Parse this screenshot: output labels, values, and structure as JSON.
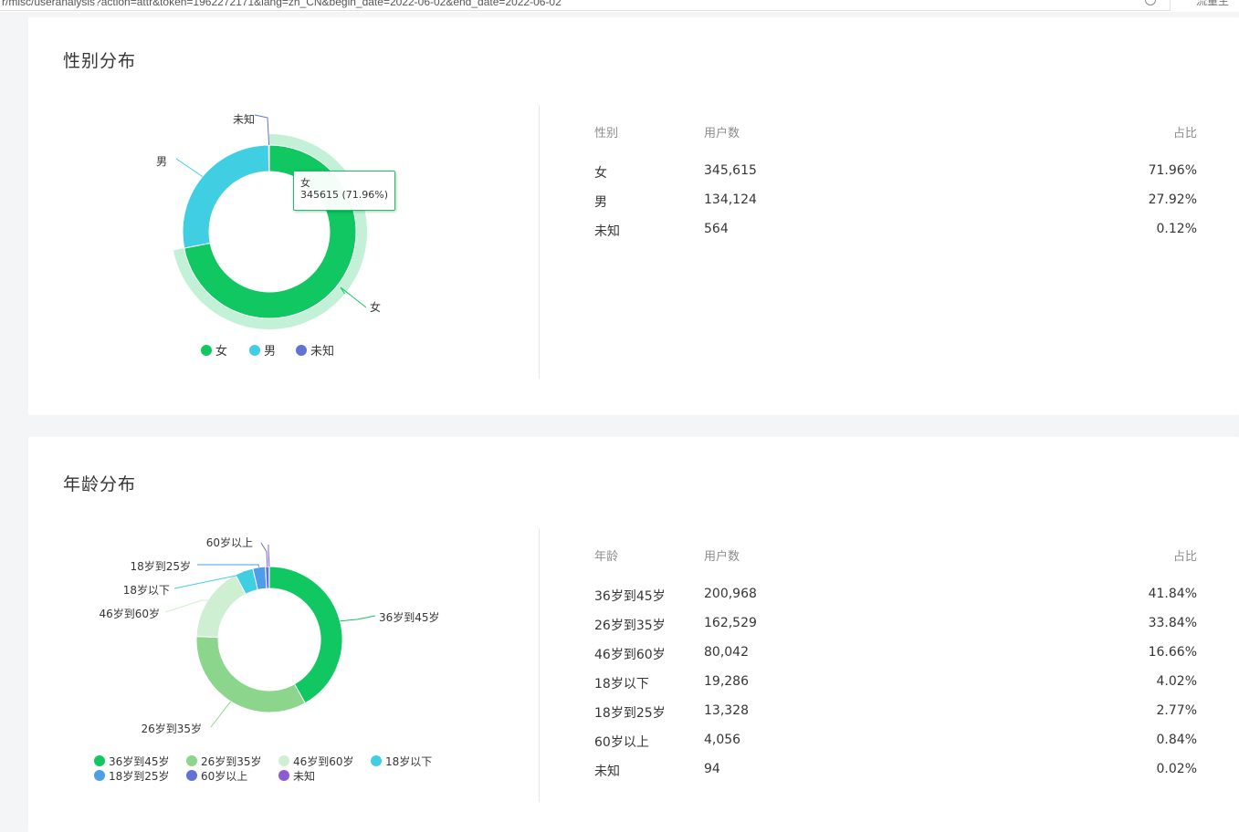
{
  "address_bar": {
    "url": "r/misc/useranalysis?action=attr&token=1962272171&lang=zh_CN&begin_date=2022-06-02&end_date=2022-06-02",
    "side_tab": "流量主"
  },
  "gender": {
    "title": "性别分布",
    "table": {
      "headers": [
        "性别",
        "用户数",
        "占比"
      ],
      "rows": [
        {
          "label": "女",
          "count": "345,615",
          "pct": "71.96%"
        },
        {
          "label": "男",
          "count": "134,124",
          "pct": "27.92%"
        },
        {
          "label": "未知",
          "count": "564",
          "pct": "0.12%"
        }
      ]
    },
    "tooltip": {
      "name": "女",
      "value": "345615 (71.96%)"
    }
  },
  "age": {
    "title": "年龄分布",
    "table": {
      "headers": [
        "年龄",
        "用户数",
        "占比"
      ],
      "rows": [
        {
          "label": "36岁到45岁",
          "count": "200,968",
          "pct": "41.84%"
        },
        {
          "label": "26岁到35岁",
          "count": "162,529",
          "pct": "33.84%"
        },
        {
          "label": "46岁到60岁",
          "count": "80,042",
          "pct": "16.66%"
        },
        {
          "label": "18岁以下",
          "count": "19,286",
          "pct": "4.02%"
        },
        {
          "label": "18岁到25岁",
          "count": "13,328",
          "pct": "2.77%"
        },
        {
          "label": "60岁以上",
          "count": "4,056",
          "pct": "0.84%"
        },
        {
          "label": "未知",
          "count": "94",
          "pct": "0.02%"
        }
      ]
    }
  },
  "chart_data": [
    {
      "type": "pie",
      "title": "性别分布",
      "donut": true,
      "categories": [
        "女",
        "男",
        "未知"
      ],
      "values": [
        345615,
        134124,
        564
      ],
      "colors": [
        "#10c761",
        "#40cfe2",
        "#6271d4"
      ],
      "highlighted": "女",
      "legend": [
        "女",
        "男",
        "未知"
      ],
      "legend_position": "bottom"
    },
    {
      "type": "pie",
      "title": "年龄分布",
      "donut": true,
      "categories": [
        "36岁到45岁",
        "26岁到35岁",
        "46岁到60岁",
        "18岁以下",
        "18岁到25岁",
        "60岁以上",
        "未知"
      ],
      "values": [
        200968,
        162529,
        80042,
        19286,
        13328,
        4056,
        94
      ],
      "colors": [
        "#10c761",
        "#8bd68c",
        "#cfefd3",
        "#40cfe2",
        "#4d9de8",
        "#6271d4",
        "#8e5bd2"
      ],
      "legend": [
        "36岁到45岁",
        "26岁到35岁",
        "46岁到60岁",
        "18岁以下",
        "18岁到25岁",
        "60岁以上",
        "未知"
      ],
      "legend_position": "bottom"
    }
  ]
}
